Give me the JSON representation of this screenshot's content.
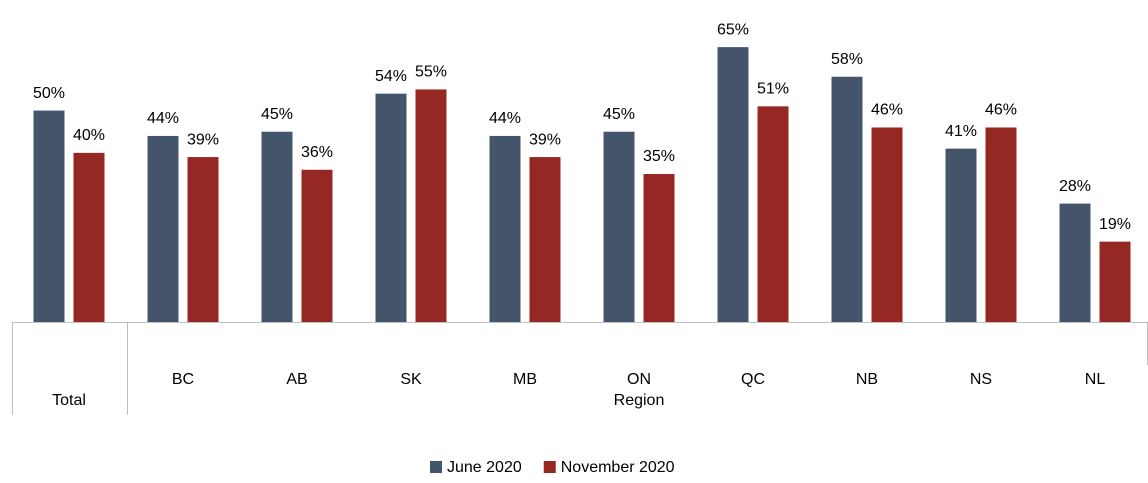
{
  "chart_data": {
    "type": "bar",
    "categories": [
      "Total",
      "BC",
      "AB",
      "SK",
      "MB",
      "ON",
      "QC",
      "NB",
      "NS",
      "NL"
    ],
    "category_group": {
      "label": "Region",
      "from": 1
    },
    "series": [
      {
        "name": "June 2020",
        "color": "#44546a",
        "values": [
          50,
          44,
          45,
          54,
          44,
          45,
          65,
          58,
          41,
          28
        ],
        "value_labels": [
          "50%",
          "44%",
          "45%",
          "54%",
          "44%",
          "45%",
          "65%",
          "58%",
          "41%",
          "28%"
        ]
      },
      {
        "name": "November 2020",
        "color": "#962823",
        "values": [
          40,
          39,
          36,
          55,
          39,
          35,
          51,
          46,
          46,
          19
        ],
        "value_labels": [
          "40%",
          "39%",
          "36%",
          "55%",
          "39%",
          "35%",
          "51%",
          "46%",
          "46%",
          "19%"
        ]
      }
    ],
    "ylim": [
      0,
      70
    ],
    "grid": false,
    "legend": "bottom"
  }
}
